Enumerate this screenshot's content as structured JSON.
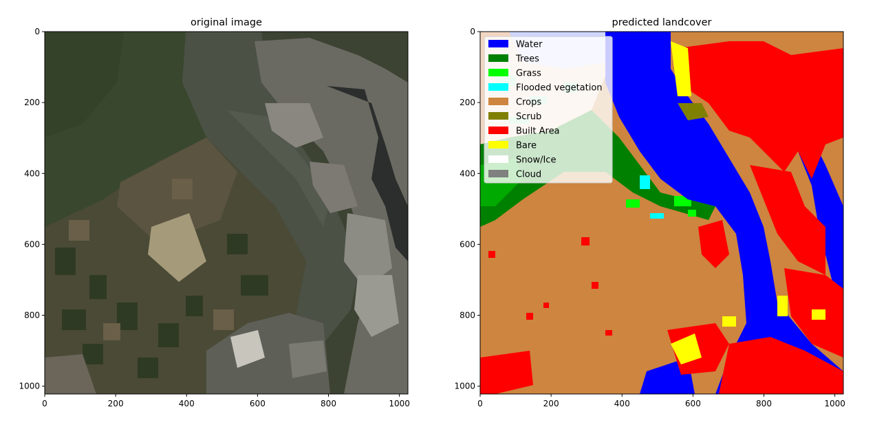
{
  "panels": [
    {
      "title": "original image",
      "x_ticks": [
        "0",
        "200",
        "400",
        "600",
        "800",
        "1000"
      ],
      "y_ticks": [
        "0",
        "200",
        "400",
        "600",
        "800",
        "1000"
      ]
    },
    {
      "title": "predicted landcover",
      "x_ticks": [
        "0",
        "200",
        "400",
        "600",
        "800",
        "1000"
      ],
      "y_ticks": [
        "0",
        "200",
        "400",
        "600",
        "800",
        "1000"
      ]
    }
  ],
  "legend": [
    {
      "label": "Water",
      "color": "#0000ff"
    },
    {
      "label": "Trees",
      "color": "#008000"
    },
    {
      "label": "Grass",
      "color": "#00ff00"
    },
    {
      "label": "Flooded vegetation",
      "color": "#00ffff"
    },
    {
      "label": "Crops",
      "color": "#cd853f"
    },
    {
      "label": "Scrub",
      "color": "#808000"
    },
    {
      "label": "Built Area",
      "color": "#ff0000"
    },
    {
      "label": "Bare",
      "color": "#ffff00"
    },
    {
      "label": "Snow/Ice",
      "color": "#ffffff"
    },
    {
      "label": "Cloud",
      "color": "#808080"
    }
  ]
}
